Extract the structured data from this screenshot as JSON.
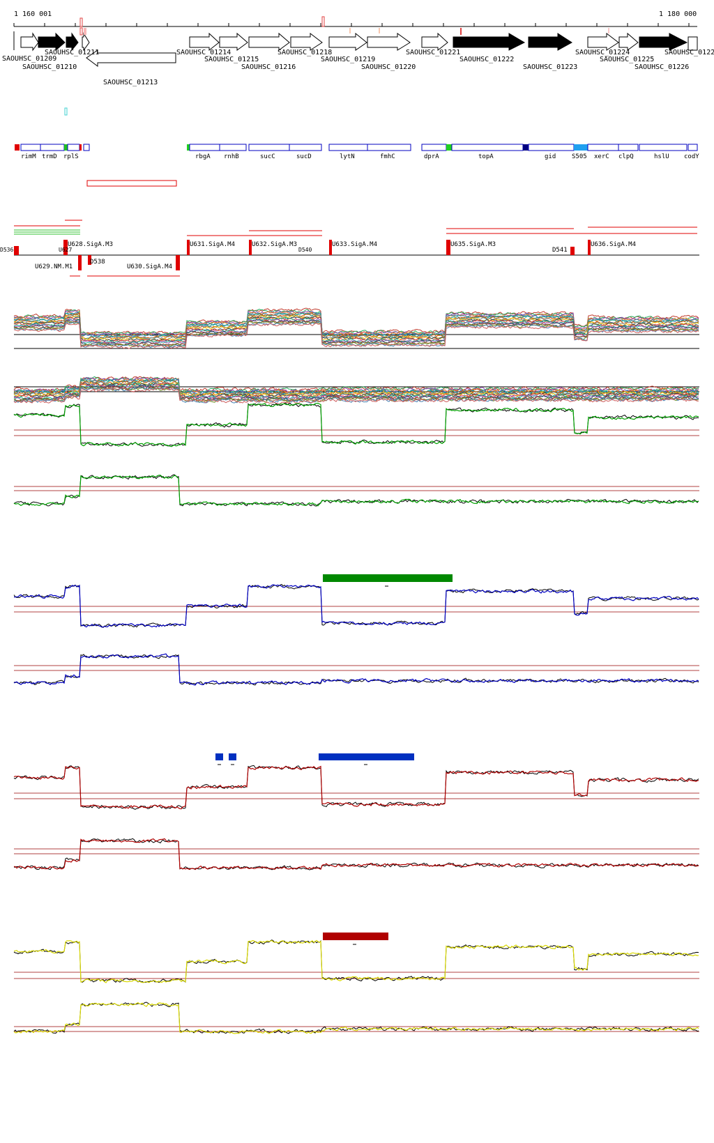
{
  "ruler": {
    "start_label": "1 160 001",
    "end_label": "1 180 000"
  },
  "genes": [
    {
      "id": "gene-01209",
      "label": "SAOUHSC_01209"
    },
    {
      "id": "gene-01210",
      "label": "SAOUHSC_01210"
    },
    {
      "id": "gene-01211",
      "label": "SAOUHSC_01211"
    },
    {
      "id": "gene-01213",
      "label": "SAOUHSC_01213"
    },
    {
      "id": "gene-01214",
      "label": "SAOUHSC_01214"
    },
    {
      "id": "gene-01215",
      "label": "SAOUHSC_01215"
    },
    {
      "id": "gene-01216",
      "label": "SAOUHSC_01216"
    },
    {
      "id": "gene-01218",
      "label": "SAOUHSC_01218"
    },
    {
      "id": "gene-01219",
      "label": "SAOUHSC_01219"
    },
    {
      "id": "gene-01220",
      "label": "SAOUHSC_01220"
    },
    {
      "id": "gene-01221",
      "label": "SAOUHSC_01221"
    },
    {
      "id": "gene-01222",
      "label": "SAOUHSC_01222"
    },
    {
      "id": "gene-01223",
      "label": "SAOUHSC_01223"
    },
    {
      "id": "gene-01224",
      "label": "SAOUHSC_01224"
    },
    {
      "id": "gene-01225",
      "label": "SAOUHSC_01225"
    },
    {
      "id": "gene-01226",
      "label": "SAOUHSC_01226"
    },
    {
      "id": "gene-01227",
      "label": "SAOUHSC_0122"
    }
  ],
  "gene_names": [
    "rimM",
    "trmD",
    "rplS",
    "rbgA",
    "rnhB",
    "sucC",
    "sucD",
    "lytN",
    "fmhC",
    "dprA",
    "topA",
    "gid",
    "S505",
    "xerC",
    "clpQ",
    "hslU",
    "codY"
  ],
  "promoters": {
    "above": [
      "U628.SigA.M3",
      "U631.SigA.M4",
      "U632.SigA.M3",
      "U633.SigA.M4",
      "U635.SigA.M3",
      "U636.SigA.M4"
    ],
    "below": [
      "U629.NM.M1",
      "D538",
      "U630.SigA.M4",
      "D541"
    ],
    "small": [
      "D536",
      "U627",
      "D540"
    ]
  },
  "colors": {
    "green": "#00a000",
    "blue": "#0000c0",
    "red": "#b00000",
    "yellow": "#d8d800",
    "black": "#000000",
    "threshold": "#b04040"
  }
}
